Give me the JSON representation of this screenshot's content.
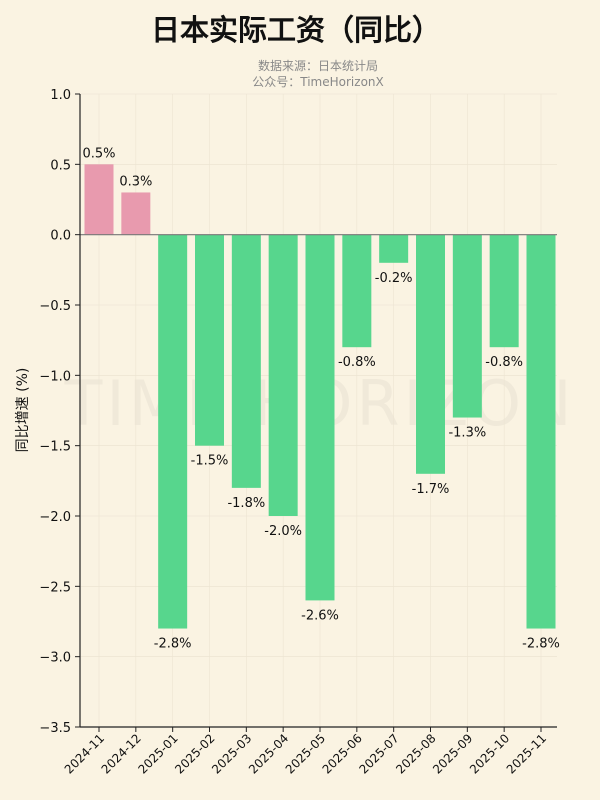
{
  "chart_data": {
    "type": "bar",
    "title": "日本实际工资（同比）",
    "subtitle_lines": [
      "数据来源：日本统计局",
      "公众号：TimeHorizonX"
    ],
    "watermark": "TIME HORIZON",
    "xlabel": "",
    "ylabel": "同比增速 (%)",
    "ylim": [
      -3.5,
      1.0
    ],
    "yticks": [
      1.0,
      0.5,
      0.0,
      -0.5,
      -1.0,
      -1.5,
      -2.0,
      -2.5,
      -3.0,
      -3.5
    ],
    "grid": true,
    "categories": [
      "2024-11",
      "2024-12",
      "2025-01",
      "2025-02",
      "2025-03",
      "2025-04",
      "2025-05",
      "2025-06",
      "2025-07",
      "2025-08",
      "2025-09",
      "2025-10",
      "2025-11"
    ],
    "values": [
      0.5,
      0.3,
      -2.8,
      -1.5,
      -1.8,
      -2.0,
      -2.6,
      -0.8,
      -0.2,
      -1.7,
      -1.3,
      -0.8,
      -2.8
    ],
    "labels": [
      "0.5%",
      "0.3%",
      "-2.8%",
      "-1.5%",
      "-1.8%",
      "-2.0%",
      "-2.6%",
      "-0.8%",
      "-0.2%",
      "-1.7%",
      "-1.3%",
      "-0.8%",
      "-2.8%"
    ],
    "colors": {
      "positive": "#e89aae",
      "negative": "#57d68d",
      "background": "#faf3e2"
    }
  }
}
